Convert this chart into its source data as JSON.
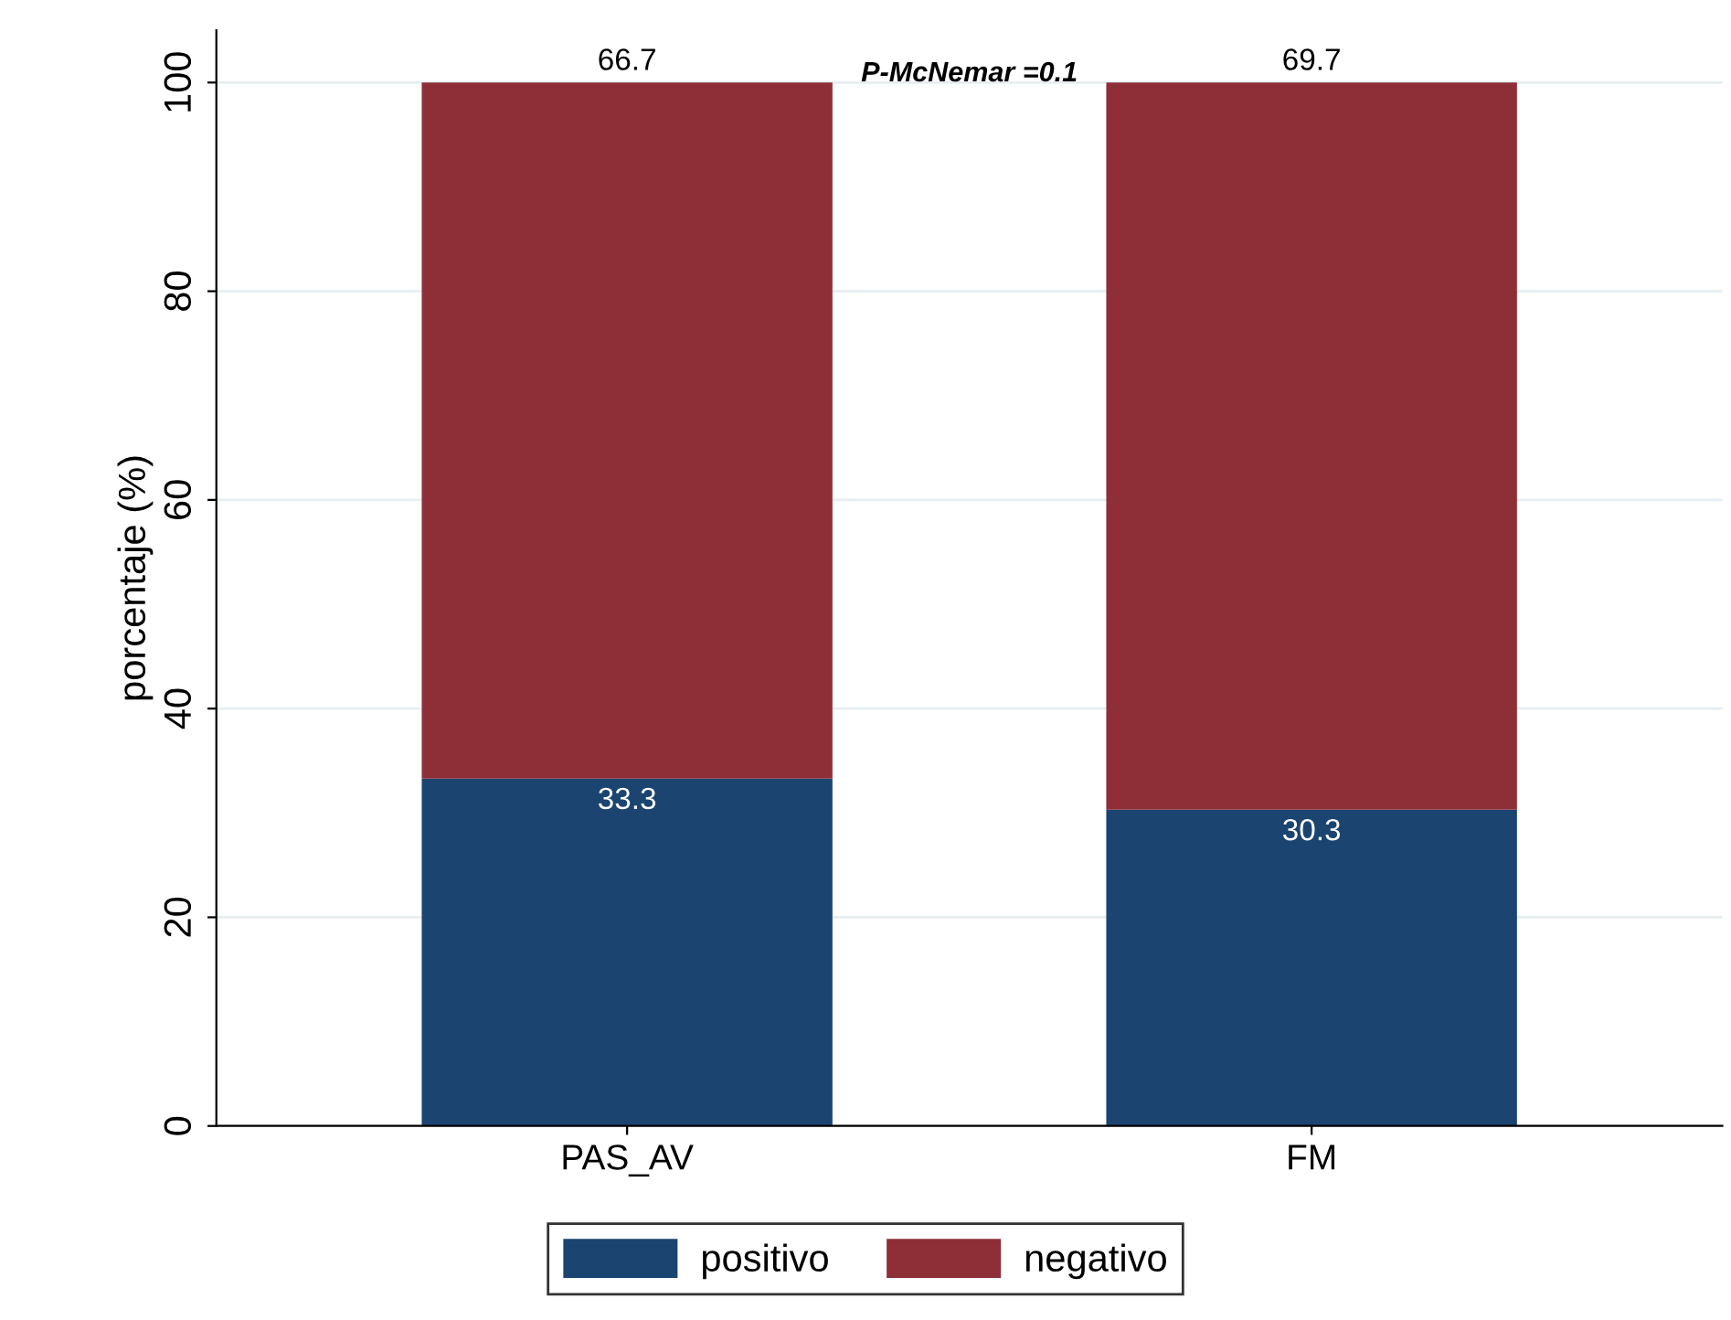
{
  "chart_data": {
    "type": "bar",
    "stacked": true,
    "ylabel": "porcentaje (%)",
    "categories": [
      "PAS_AV",
      "FM"
    ],
    "series": [
      {
        "name": "positivo",
        "color": "#1b4470",
        "values": [
          33.3,
          30.3
        ]
      },
      {
        "name": "negativo",
        "color": "#8e2f38",
        "values": [
          66.7,
          69.7
        ]
      }
    ],
    "ylim": [
      0,
      105
    ],
    "yticks": [
      0,
      20,
      40,
      60,
      80,
      100
    ],
    "grid": "y",
    "legend": "bottom",
    "data_labels": true,
    "annotations": [
      {
        "text": "P-McNemar =0.1"
      }
    ]
  }
}
